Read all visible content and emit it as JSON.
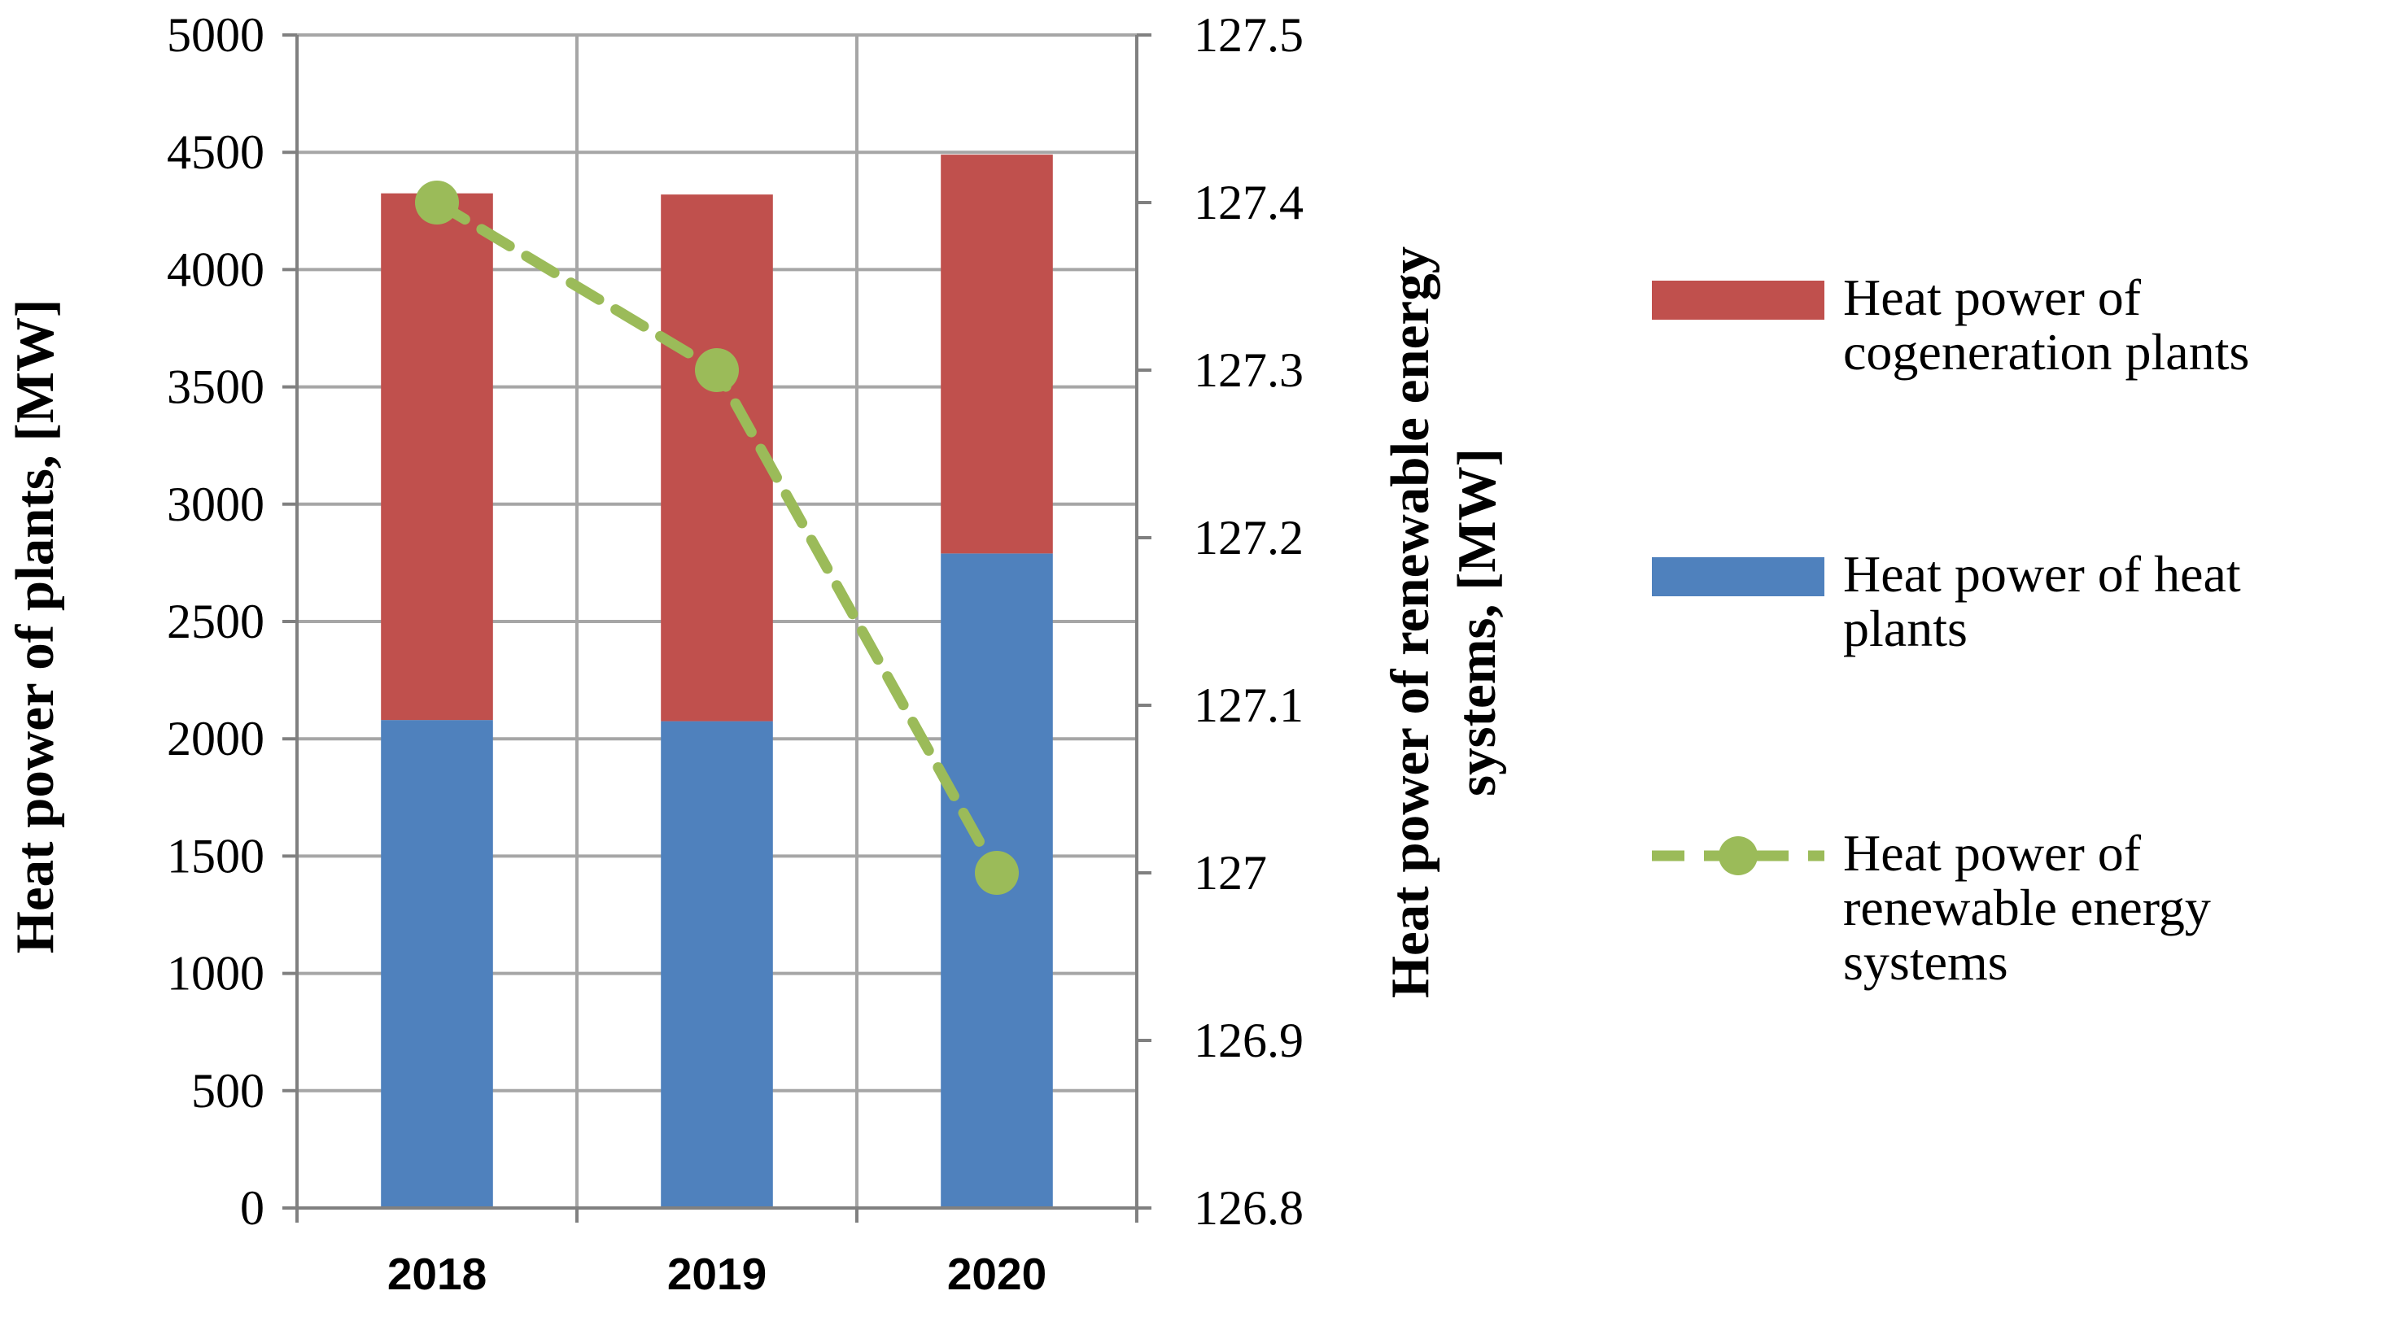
{
  "chart_data": {
    "type": "bar",
    "stacked": true,
    "categories": [
      "2018",
      "2019",
      "2020"
    ],
    "series": [
      {
        "name": "Heat power of heat plants",
        "axis": "left",
        "type": "bar",
        "color": "#4f81bd",
        "values": [
          2080,
          2075,
          2790
        ]
      },
      {
        "name": "Heat power of cogeneration plants",
        "axis": "left",
        "type": "bar",
        "color": "#c0504d",
        "values": [
          2245,
          2245,
          1700
        ]
      },
      {
        "name": "Heat power of renewable energy systems",
        "axis": "right",
        "type": "line",
        "style": "dashed",
        "marker": "circle",
        "color": "#9bbb59",
        "values": [
          127.4,
          127.3,
          127.0
        ]
      }
    ],
    "xlabel": "",
    "ylabel": "Heat power of plants, [MW]",
    "ylabel_right_lines": [
      "Heat power of renewable energy",
      "systems, [MW]"
    ],
    "ylim": [
      0,
      5000
    ],
    "ylim_right": [
      126.8,
      127.5
    ],
    "yticks": [
      "0",
      "500",
      "1000",
      "1500",
      "2000",
      "2500",
      "3000",
      "3500",
      "4000",
      "4500",
      "5000"
    ],
    "yticks_right": [
      "126.8",
      "126.9",
      "127",
      "127.1",
      "127.2",
      "127.3",
      "127.4",
      "127.5"
    ],
    "legend_position": "right",
    "legend": [
      {
        "lines": [
          "Heat power of",
          "cogeneration plants"
        ],
        "color": "#c0504d",
        "kind": "bar"
      },
      {
        "lines": [
          "Heat power of heat",
          "plants"
        ],
        "color": "#4f81bd",
        "kind": "bar"
      },
      {
        "lines": [
          "Heat power of",
          "renewable energy",
          "systems"
        ],
        "color": "#9bbb59",
        "kind": "line"
      }
    ],
    "grid": true,
    "grid_color": "#a6a6a6"
  }
}
